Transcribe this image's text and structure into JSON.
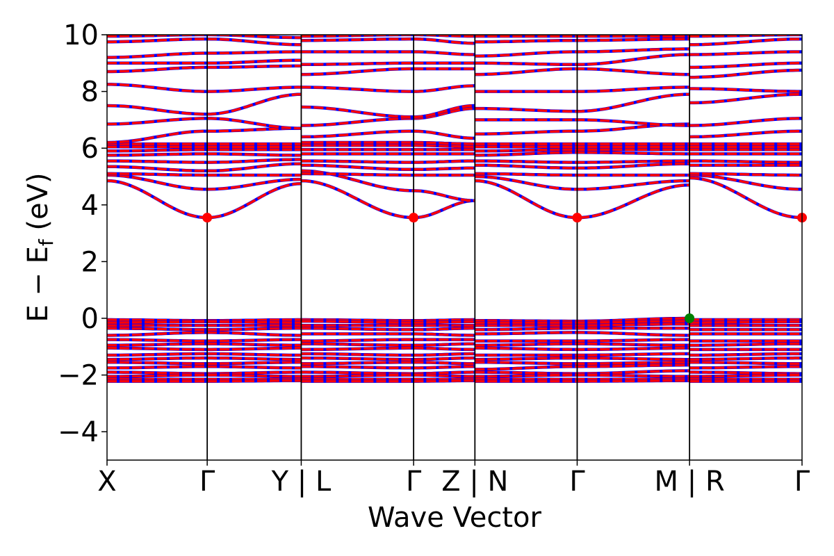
{
  "chart_data": {
    "type": "line",
    "title": "",
    "xlabel": "Wave Vector",
    "ylabel_main": "E − E",
    "ylabel_sub": "f",
    "ylabel_unit": " (eV)",
    "ylim": [
      -5,
      10
    ],
    "yticks": [
      "−4",
      "−2",
      "0",
      "2",
      "4",
      "6",
      "8",
      "10"
    ],
    "ytick_values": [
      -4,
      -2,
      0,
      2,
      4,
      6,
      8,
      10
    ],
    "kpath": [
      {
        "label": "X",
        "pos": 0.0
      },
      {
        "label": "Γ",
        "pos": 0.0961
      },
      {
        "label": "Y | L",
        "pos": 0.1863
      },
      {
        "label": "Γ",
        "pos": 0.2941
      },
      {
        "label": "Z | N",
        "pos": 0.3529
      },
      {
        "label": "Γ",
        "pos": 0.451
      },
      {
        "label": "M | R",
        "pos": 0.5588
      },
      {
        "label": "Γ",
        "pos": 0.6667
      }
    ],
    "x_max": 0.6667,
    "series_colors": {
      "up": "#ff0000",
      "down": "#0000ff"
    },
    "markers": [
      {
        "name": "cbm",
        "x": 0.0961,
        "y": 3.55,
        "color": "#ff0000"
      },
      {
        "name": "cbm",
        "x": 0.2941,
        "y": 3.55,
        "color": "#ff0000"
      },
      {
        "name": "cbm",
        "x": 0.451,
        "y": 3.55,
        "color": "#ff0000"
      },
      {
        "name": "cbm",
        "x": 0.6667,
        "y": 3.55,
        "color": "#ff0000"
      },
      {
        "name": "vbm",
        "x": 0.5588,
        "y": 0.0,
        "color": "#008000"
      }
    ],
    "bands": {
      "segments": [
        {
          "from": 0,
          "to": 1
        },
        {
          "from": 2,
          "to": 3
        },
        {
          "from": 4,
          "to": 5
        },
        {
          "from": 6,
          "to": 7
        }
      ],
      "conduction": [
        {
          "vals": [
            4.85,
            3.55,
            4.75,
            4.85,
            3.55,
            4.15,
            4.85,
            3.55,
            4.7,
            4.95,
            3.55
          ]
        },
        {
          "vals": [
            5.05,
            4.55,
            4.9,
            5.2,
            4.5,
            4.15,
            5.0,
            4.55,
            4.85,
            5.05,
            4.55
          ]
        },
        {
          "vals": [
            5.1,
            5.05,
            5.05,
            5.1,
            5.05,
            5.05,
            5.1,
            5.05,
            5.05,
            5.1,
            5.05
          ]
        },
        {
          "vals": [
            5.35,
            5.2,
            5.45,
            5.4,
            5.25,
            5.3,
            5.4,
            5.3,
            5.45,
            5.4,
            5.4
          ]
        },
        {
          "vals": [
            5.55,
            5.5,
            5.6,
            5.55,
            5.5,
            5.55,
            5.55,
            5.5,
            5.55,
            5.55,
            5.5
          ]
        },
        {
          "vals": [
            5.75,
            5.8,
            5.75,
            5.8,
            5.8,
            5.8,
            5.75,
            5.85,
            5.8,
            5.8,
            5.8
          ]
        },
        {
          "vals": [
            5.9,
            5.95,
            5.95,
            5.95,
            5.95,
            5.95,
            5.9,
            5.95,
            5.95,
            5.95,
            5.95
          ]
        },
        {
          "vals": [
            6.05,
            6.05,
            6.05,
            6.1,
            6.1,
            6.05,
            6.05,
            6.05,
            6.05,
            6.05,
            6.05
          ]
        },
        {
          "vals": [
            6.15,
            6.15,
            6.15,
            6.2,
            6.2,
            6.15,
            6.15,
            6.15,
            6.15,
            6.15,
            6.15
          ]
        },
        {
          "vals": [
            6.2,
            6.6,
            6.7,
            6.4,
            6.6,
            6.35,
            6.5,
            6.6,
            6.85,
            6.4,
            6.6
          ]
        },
        {
          "vals": [
            6.85,
            7.05,
            6.7,
            6.8,
            7.05,
            7.4,
            7.0,
            7.0,
            6.8,
            6.8,
            7.05
          ]
        },
        {
          "vals": [
            7.5,
            7.2,
            7.9,
            7.45,
            7.1,
            7.5,
            7.4,
            7.3,
            7.9,
            7.6,
            7.9
          ]
        },
        {
          "vals": [
            8.25,
            8.0,
            8.15,
            8.15,
            8.0,
            8.2,
            8.0,
            8.0,
            8.15,
            8.1,
            8.0
          ]
        },
        {
          "vals": [
            8.7,
            8.85,
            8.9,
            8.6,
            8.8,
            8.8,
            8.6,
            8.8,
            8.6,
            8.5,
            8.75
          ]
        },
        {
          "vals": [
            9.0,
            9.0,
            9.1,
            8.95,
            9.0,
            9.0,
            9.0,
            8.95,
            9.3,
            8.85,
            9.0
          ]
        },
        {
          "vals": [
            9.2,
            9.35,
            9.4,
            9.4,
            9.4,
            9.3,
            9.25,
            9.4,
            9.5,
            9.3,
            9.4
          ]
        },
        {
          "vals": [
            9.75,
            9.85,
            9.65,
            9.8,
            9.85,
            9.7,
            9.75,
            9.8,
            9.85,
            9.65,
            9.85
          ]
        },
        {
          "vals": [
            9.95,
            10.0,
            9.9,
            9.95,
            10.0,
            9.95,
            9.95,
            9.95,
            9.95,
            9.95,
            10.0
          ]
        }
      ],
      "valence": [
        {
          "vals": [
            -0.05,
            -0.08,
            -0.05,
            -0.05,
            -0.08,
            -0.05,
            -0.08,
            -0.1,
            0.0,
            -0.05,
            -0.05
          ]
        },
        {
          "vals": [
            -0.15,
            -0.12,
            -0.15,
            -0.1,
            -0.15,
            -0.12,
            -0.15,
            -0.15,
            -0.1,
            -0.15,
            -0.12
          ]
        },
        {
          "vals": [
            -0.25,
            -0.25,
            -0.25,
            -0.25,
            -0.25,
            -0.25,
            -0.25,
            -0.25,
            -0.2,
            -0.25,
            -0.25
          ]
        },
        {
          "vals": [
            -0.35,
            -0.4,
            -0.35,
            -0.35,
            -0.4,
            -0.35,
            -0.4,
            -0.35,
            -0.35,
            -0.4,
            -0.4
          ]
        },
        {
          "vals": [
            -0.6,
            -0.5,
            -0.6,
            -0.55,
            -0.55,
            -0.6,
            -0.55,
            -0.5,
            -0.6,
            -0.55,
            -0.55
          ]
        },
        {
          "vals": [
            -0.75,
            -0.8,
            -0.75,
            -0.8,
            -0.75,
            -0.75,
            -0.8,
            -0.8,
            -0.75,
            -0.8,
            -0.8
          ]
        },
        {
          "vals": [
            -0.95,
            -0.9,
            -0.95,
            -0.9,
            -0.95,
            -0.9,
            -0.95,
            -0.9,
            -0.95,
            -0.95,
            -0.9
          ]
        },
        {
          "vals": [
            -1.05,
            -1.1,
            -1.05,
            -1.1,
            -1.05,
            -1.1,
            -1.05,
            -1.1,
            -1.05,
            -1.1,
            -1.1
          ]
        },
        {
          "vals": [
            -1.3,
            -1.25,
            -1.3,
            -1.25,
            -1.3,
            -1.25,
            -1.3,
            -1.3,
            -1.25,
            -1.3,
            -1.25
          ]
        },
        {
          "vals": [
            -1.45,
            -1.4,
            -1.45,
            -1.4,
            -1.45,
            -1.4,
            -1.45,
            -1.4,
            -1.45,
            -1.45,
            -1.4
          ]
        },
        {
          "vals": [
            -1.55,
            -1.6,
            -1.55,
            -1.6,
            -1.55,
            -1.6,
            -1.55,
            -1.6,
            -1.55,
            -1.55,
            -1.6
          ]
        },
        {
          "vals": [
            -1.75,
            -1.7,
            -1.75,
            -1.7,
            -1.75,
            -1.7,
            -1.8,
            -1.7,
            -1.65,
            -1.75,
            -1.7
          ]
        },
        {
          "vals": [
            -1.9,
            -1.95,
            -1.9,
            -1.9,
            -1.95,
            -1.9,
            -1.9,
            -1.95,
            -1.85,
            -1.9,
            -1.95
          ]
        },
        {
          "vals": [
            -2.05,
            -2.0,
            -2.05,
            -2.05,
            -2.0,
            -2.05,
            -2.05,
            -2.0,
            -2.05,
            -2.05,
            -2.0
          ]
        },
        {
          "vals": [
            -2.15,
            -2.15,
            -2.15,
            -2.15,
            -2.15,
            -2.15,
            -2.15,
            -2.15,
            -2.15,
            -2.15,
            -2.15
          ]
        },
        {
          "vals": [
            -2.22,
            -2.22,
            -2.2,
            -2.22,
            -2.22,
            -2.2,
            -2.22,
            -2.22,
            -2.2,
            -2.22,
            -2.22
          ]
        }
      ]
    }
  }
}
